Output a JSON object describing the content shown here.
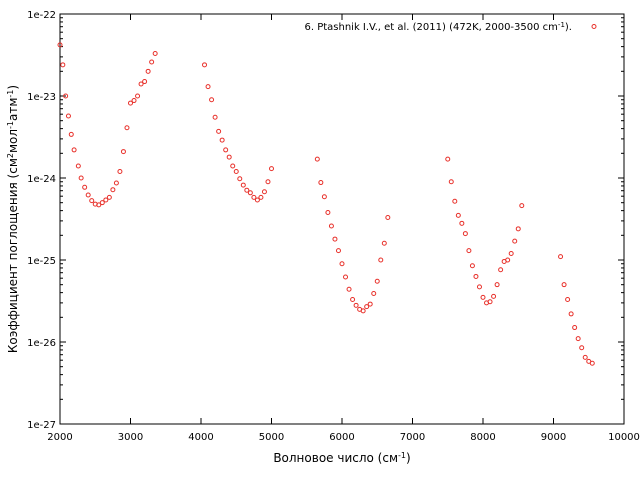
{
  "chart_data": {
    "type": "scatter",
    "xlabel": {
      "text": "Волновое число (см",
      "sup": "-1",
      "tail": ")"
    },
    "ylabel": {
      "parts": [
        {
          "t": "Коэффициент поглощения (см",
          "sup": false
        },
        {
          "t": "2",
          "sup": true
        },
        {
          "t": "мол",
          "sup": false
        },
        {
          "t": "-1",
          "sup": true
        },
        {
          "t": "атм",
          "sup": false
        },
        {
          "t": "-1",
          "sup": true
        },
        {
          "t": ")",
          "sup": false
        }
      ]
    },
    "xlim": [
      2000,
      10000
    ],
    "ylim": [
      1e-27,
      1e-22
    ],
    "yscale": "log",
    "x_ticks": [
      2000,
      3000,
      4000,
      5000,
      6000,
      7000,
      8000,
      9000,
      10000
    ],
    "x_tick_labels": [
      "2000",
      "3000",
      "4000",
      "5000",
      "6000",
      "7000",
      "8000",
      "9000",
      "10000"
    ],
    "y_ticks": [
      1e-27,
      1e-26,
      1e-25,
      1e-24,
      1e-23,
      1e-22
    ],
    "y_tick_labels": [
      "1e-27",
      "1e-26",
      "1e-25",
      "1e-24",
      "1e-23",
      "1e-22"
    ],
    "grid": false,
    "legend_position": "top-right",
    "marker_color": "#e8302a",
    "series": [
      {
        "name": {
          "text": "6. Ptashnik I.V., et al. (2011) (472K, 2000-3500 cm",
          "sup": "-1",
          "tail": ")."
        },
        "points": [
          [
            2000,
            4.2e-23
          ],
          [
            2040,
            2.4e-23
          ],
          [
            2080,
            1e-23
          ],
          [
            2120,
            5.7e-24
          ],
          [
            2160,
            3.4e-24
          ],
          [
            2200,
            2.2e-24
          ],
          [
            2260,
            1.4e-24
          ],
          [
            2300,
            1e-24
          ],
          [
            2350,
            7.7e-25
          ],
          [
            2400,
            6.2e-25
          ],
          [
            2450,
            5.3e-25
          ],
          [
            2500,
            4.8e-25
          ],
          [
            2550,
            4.7e-25
          ],
          [
            2600,
            5e-25
          ],
          [
            2650,
            5.4e-25
          ],
          [
            2700,
            5.8e-25
          ],
          [
            2750,
            7.2e-25
          ],
          [
            2800,
            8.7e-25
          ],
          [
            2850,
            1.2e-24
          ],
          [
            2900,
            2.1e-24
          ],
          [
            2950,
            4.1e-24
          ],
          [
            3000,
            8.2e-24
          ],
          [
            3050,
            8.8e-24
          ],
          [
            3100,
            1e-23
          ],
          [
            3150,
            1.4e-23
          ],
          [
            3200,
            1.5e-23
          ],
          [
            3250,
            2e-23
          ],
          [
            3300,
            2.6e-23
          ],
          [
            3350,
            3.3e-23
          ],
          [
            4050,
            2.4e-23
          ],
          [
            4100,
            1.3e-23
          ],
          [
            4150,
            9e-24
          ],
          [
            4200,
            5.5e-24
          ],
          [
            4250,
            3.7e-24
          ],
          [
            4300,
            2.9e-24
          ],
          [
            4350,
            2.2e-24
          ],
          [
            4400,
            1.8e-24
          ],
          [
            4450,
            1.4e-24
          ],
          [
            4500,
            1.2e-24
          ],
          [
            4550,
            9.8e-25
          ],
          [
            4600,
            8.2e-25
          ],
          [
            4650,
            7.1e-25
          ],
          [
            4700,
            6.6e-25
          ],
          [
            4750,
            5.8e-25
          ],
          [
            4800,
            5.4e-25
          ],
          [
            4850,
            5.8e-25
          ],
          [
            4900,
            6.8e-25
          ],
          [
            4950,
            9e-25
          ],
          [
            5000,
            1.3e-24
          ],
          [
            5650,
            1.7e-24
          ],
          [
            5700,
            8.8e-25
          ],
          [
            5750,
            5.9e-25
          ],
          [
            5800,
            3.8e-25
          ],
          [
            5850,
            2.6e-25
          ],
          [
            5900,
            1.8e-25
          ],
          [
            5950,
            1.3e-25
          ],
          [
            6000,
            9e-26
          ],
          [
            6050,
            6.2e-26
          ],
          [
            6100,
            4.4e-26
          ],
          [
            6150,
            3.3e-26
          ],
          [
            6200,
            2.8e-26
          ],
          [
            6250,
            2.5e-26
          ],
          [
            6300,
            2.4e-26
          ],
          [
            6350,
            2.7e-26
          ],
          [
            6400,
            2.9e-26
          ],
          [
            6450,
            3.9e-26
          ],
          [
            6500,
            5.5e-26
          ],
          [
            6550,
            1e-25
          ],
          [
            6600,
            1.6e-25
          ],
          [
            6650,
            3.3e-25
          ],
          [
            7500,
            1.7e-24
          ],
          [
            7550,
            9e-25
          ],
          [
            7600,
            5.2e-25
          ],
          [
            7650,
            3.5e-25
          ],
          [
            7700,
            2.8e-25
          ],
          [
            7750,
            2.1e-25
          ],
          [
            7800,
            1.3e-25
          ],
          [
            7850,
            8.5e-26
          ],
          [
            7900,
            6.3e-26
          ],
          [
            7950,
            4.7e-26
          ],
          [
            8000,
            3.5e-26
          ],
          [
            8050,
            3e-26
          ],
          [
            8100,
            3.1e-26
          ],
          [
            8150,
            3.6e-26
          ],
          [
            8200,
            5e-26
          ],
          [
            8250,
            7.6e-26
          ],
          [
            8300,
            9.6e-26
          ],
          [
            8350,
            1e-25
          ],
          [
            8400,
            1.2e-25
          ],
          [
            8450,
            1.7e-25
          ],
          [
            8500,
            2.4e-25
          ],
          [
            8550,
            4.6e-25
          ],
          [
            9100,
            1.1e-25
          ],
          [
            9150,
            5e-26
          ],
          [
            9200,
            3.3e-26
          ],
          [
            9250,
            2.2e-26
          ],
          [
            9300,
            1.5e-26
          ],
          [
            9350,
            1.1e-26
          ],
          [
            9400,
            8.5e-27
          ],
          [
            9450,
            6.5e-27
          ],
          [
            9500,
            5.8e-27
          ],
          [
            9550,
            5.5e-27
          ]
        ]
      }
    ]
  }
}
